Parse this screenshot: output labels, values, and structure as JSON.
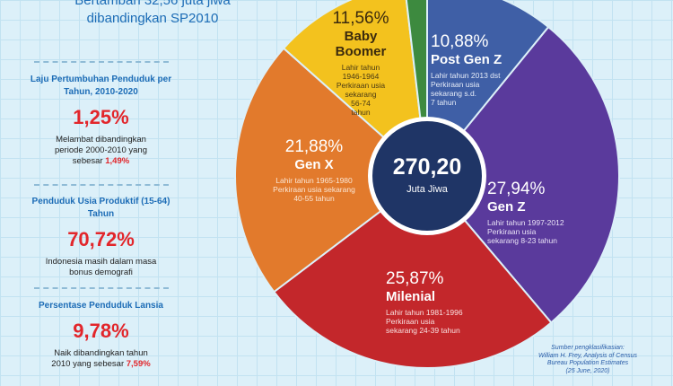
{
  "header": {
    "lines": [
      "Bertambah 32,56 juta jiwa",
      "dibandingkan SP2010"
    ]
  },
  "sidebar": [
    {
      "title": "Laju Pertumbuhan Penduduk per Tahun, 2010-2020",
      "value": "1,25%",
      "note": "Melambat dibandingkan periode 2000-2010 yang sebesar",
      "highlight": "1,49%"
    },
    {
      "title": "Penduduk Usia Produktif (15-64) Tahun",
      "value": "70,72%",
      "note": "Indonesia masih dalam masa bonus demografi",
      "highlight": null
    },
    {
      "title": "Persentase Penduduk Lansia",
      "value": "9,78%",
      "note": "Naik dibandingkan tahun 2010 yang sebesar",
      "highlight": "7,59%"
    }
  ],
  "chart_data": {
    "type": "pie",
    "categories": [
      "Post Gen Z",
      "Gen Z",
      "Milenial",
      "Gen X",
      "Baby Boomer",
      null
    ],
    "values": [
      10.88,
      27.94,
      25.87,
      21.88,
      11.56,
      1.87
    ],
    "value_labels": [
      "10,88%",
      "27,94%",
      "25,87%",
      "21,88%",
      "11,56%",
      null
    ],
    "colors": [
      "#3f5fa6",
      "#5a3a9c",
      "#c3272b",
      "#e27a2c",
      "#f3c21e",
      "#3d8a3f"
    ],
    "descriptions": [
      [
        "Lahir tahun 2013 dst",
        "Perkiraan usia",
        "sekarang s.d.",
        "7 tahun"
      ],
      [
        "Lahir tahun 1997-2012",
        "Perkiraan usia",
        "sekarang 8-23 tahun"
      ],
      [
        "Lahir tahun 1981-1996",
        "Perkiraan usia",
        "sekarang 24-39 tahun"
      ],
      [
        "Lahir tahun 1965-1980",
        "Perkiraan usia sekarang",
        "40-55 tahun"
      ],
      [
        "Lahir tahun",
        "1946-1964",
        "Perkiraan usia",
        "sekarang",
        "56-74",
        "tahun"
      ],
      null
    ],
    "center_label": "270,20",
    "center_unit": "Juta Jiwa",
    "source": [
      "Sumber pengklasifikasian:",
      "William H. Frey, Analysis of Census",
      "Bureau Population Estimates",
      "(25 June, 2020)"
    ]
  }
}
